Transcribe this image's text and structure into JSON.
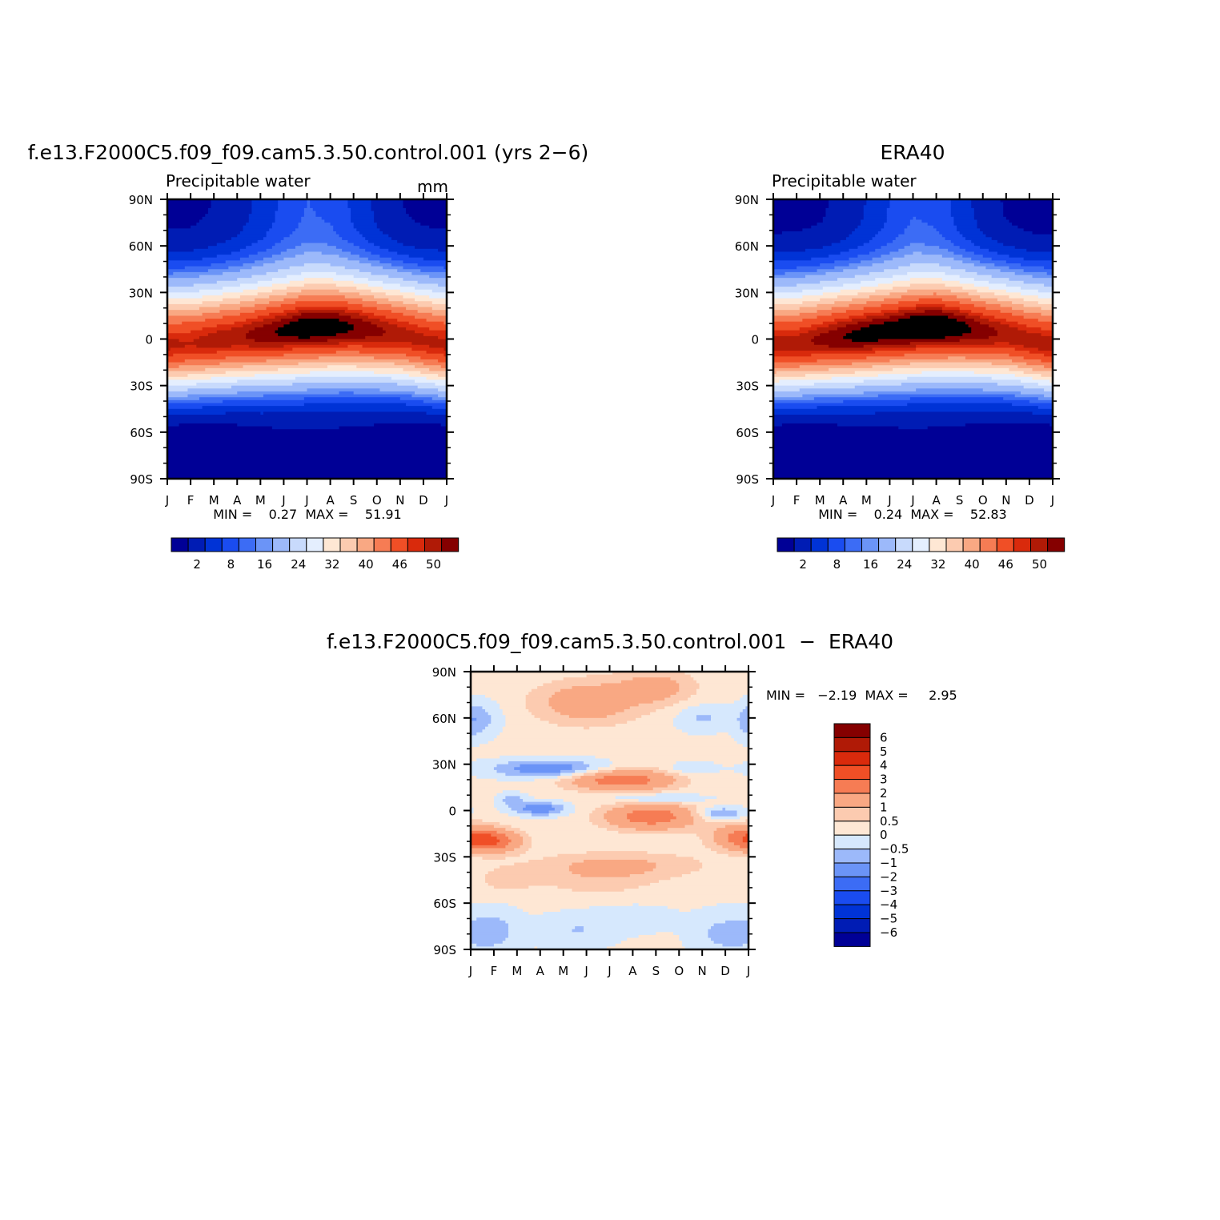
{
  "palette": {
    "seq16": [
      "#000096",
      "#001cb4",
      "#0033d6",
      "#1a4cf0",
      "#3c6cf5",
      "#6b94f7",
      "#9cb9fa",
      "#c8dafc",
      "#e4eefe",
      "#fee7d4",
      "#fccbb0",
      "#f9a883",
      "#f67c54",
      "#f04f26",
      "#d92a0c",
      "#b01a06",
      "#850000"
    ],
    "diff": [
      "#000096",
      "#001cb4",
      "#0033d6",
      "#1a4cf0",
      "#3c6cf5",
      "#6b94f7",
      "#9cb9fa",
      "#d6e8fd",
      "#fee7d4",
      "#fccbb0",
      "#f9a883",
      "#f67c54",
      "#f04f26",
      "#d92a0c",
      "#b01a06",
      "#850000"
    ]
  },
  "chart_data": [
    {
      "type": "heatmap",
      "name": "model",
      "title": "f.e13.F2000C5.f09_f09.cam5.3.50.control.001 (yrs 2−6)",
      "subtitle": "Precipitable water",
      "units": "mm",
      "x_ticks": [
        "J",
        "F",
        "M",
        "A",
        "M",
        "J",
        "J",
        "A",
        "S",
        "O",
        "N",
        "D",
        "J"
      ],
      "y_ticks": [
        "90N",
        "60N",
        "30N",
        "0",
        "30S",
        "60S",
        "90S"
      ],
      "stats": "MIN =    0.27  MAX =    51.91",
      "min": 0.27,
      "max": 51.91,
      "colorbar_labels": [
        "2",
        "8",
        "16",
        "24",
        "32",
        "40",
        "46",
        "50"
      ],
      "levels": [
        2,
        4,
        6,
        8,
        10,
        12,
        16,
        20,
        24,
        28,
        32,
        36,
        40,
        44,
        46,
        48,
        50
      ],
      "equator_peak": [
        46.5,
        46,
        47,
        47.5,
        49,
        50.5,
        51.9,
        51.5,
        50,
        48.5,
        47,
        46.5,
        46.5
      ],
      "peak_lat": [
        -4,
        -3,
        -1,
        1,
        3,
        5,
        7,
        8,
        7,
        5,
        3,
        -1,
        -4
      ],
      "polar_north": [
        1.5,
        1.5,
        2,
        3,
        4.5,
        6.5,
        8,
        7.5,
        5.5,
        3.5,
        2,
        1.5,
        1.5
      ],
      "polar_south": [
        0.3,
        0.3,
        0.4,
        0.6,
        0.9,
        1.1,
        1.2,
        1.2,
        1.0,
        0.8,
        0.5,
        0.3,
        0.3
      ]
    },
    {
      "type": "heatmap",
      "name": "obs",
      "title": "ERA40",
      "subtitle": "Precipitable water",
      "units": "",
      "x_ticks": [
        "J",
        "F",
        "M",
        "A",
        "M",
        "J",
        "J",
        "A",
        "S",
        "O",
        "N",
        "D",
        "J"
      ],
      "y_ticks": [
        "90N",
        "60N",
        "30N",
        "0",
        "30S",
        "60S",
        "90S"
      ],
      "stats": "MIN =    0.24  MAX =    52.83",
      "min": 0.24,
      "max": 52.83,
      "colorbar_labels": [
        "2",
        "8",
        "16",
        "24",
        "32",
        "40",
        "46",
        "50"
      ],
      "levels": [
        2,
        4,
        6,
        8,
        10,
        12,
        16,
        20,
        24,
        28,
        32,
        36,
        40,
        44,
        46,
        48,
        50
      ],
      "equator_peak": [
        47,
        47,
        48.5,
        50,
        51,
        51.5,
        52.5,
        52.8,
        51,
        49,
        47.5,
        47,
        47
      ],
      "peak_lat": [
        -4,
        -3,
        -1,
        1,
        3,
        5,
        7,
        8,
        7,
        5,
        3,
        -1,
        -4
      ],
      "polar_north": [
        1.2,
        1.3,
        1.6,
        2.5,
        4,
        6,
        7.8,
        7.3,
        5,
        3,
        1.7,
        1.2,
        1.2
      ],
      "polar_south": [
        0.25,
        0.25,
        0.35,
        0.55,
        0.8,
        1.0,
        1.1,
        1.1,
        0.9,
        0.7,
        0.45,
        0.25,
        0.25
      ]
    },
    {
      "type": "heatmap",
      "name": "difference",
      "title": "f.e13.F2000C5.f09_f09.cam5.3.50.control.001  −  ERA40",
      "x_ticks": [
        "J",
        "F",
        "M",
        "A",
        "M",
        "J",
        "J",
        "A",
        "S",
        "O",
        "N",
        "D",
        "J"
      ],
      "y_ticks": [
        "90N",
        "60N",
        "30N",
        "0",
        "30S",
        "60S",
        "90S"
      ],
      "stats": "MIN =   −2.19  MAX =     2.95",
      "min": -2.19,
      "max": 2.95,
      "levels": [
        -6,
        -5,
        -4,
        -3,
        -2,
        -1,
        -0.5,
        0,
        0.5,
        1,
        2,
        3,
        4,
        5,
        6
      ],
      "colorbar_labels": [
        "6",
        "5",
        "4",
        "3",
        "2",
        "1",
        "0.5",
        "0",
        "−0.5",
        "−1",
        "−2",
        "−3",
        "−4",
        "−5",
        "−6"
      ],
      "features": [
        {
          "month": 6.5,
          "lat": 20,
          "amp": 2.6,
          "sm": 1.6,
          "sl": 5
        },
        {
          "month": 7.8,
          "lat": -4,
          "amp": 2.5,
          "sm": 1.4,
          "sl": 6
        },
        {
          "month": 0.9,
          "lat": -20,
          "amp": 2.4,
          "sm": 0.9,
          "sl": 5
        },
        {
          "month": 11.8,
          "lat": -17,
          "amp": 2.0,
          "sm": 1.0,
          "sl": 6
        },
        {
          "month": 5.0,
          "lat": 70,
          "amp": 1.5,
          "sm": 1.6,
          "sl": 10
        },
        {
          "month": 8.0,
          "lat": 80,
          "amp": 1.2,
          "sm": 1.2,
          "sl": 8
        },
        {
          "month": 6.5,
          "lat": -35,
          "amp": 0.9,
          "sm": 2.6,
          "sl": 6
        },
        {
          "month": 5.5,
          "lat": -45,
          "amp": 0.6,
          "sm": 2.0,
          "sl": 8
        },
        {
          "month": 1.5,
          "lat": -45,
          "amp": 0.6,
          "sm": 0.8,
          "sl": 6
        },
        {
          "month": 3.5,
          "lat": 27,
          "amp": -1.7,
          "sm": 1.8,
          "sl": 4
        },
        {
          "month": 3.0,
          "lat": 1,
          "amp": -1.6,
          "sm": 0.8,
          "sl": 3
        },
        {
          "month": 1.8,
          "lat": 7,
          "amp": -0.9,
          "sm": 0.4,
          "sl": 3
        },
        {
          "month": 10.8,
          "lat": -2,
          "amp": -1.3,
          "sm": 0.7,
          "sl": 3
        },
        {
          "month": 8.0,
          "lat": 8,
          "amp": -1.0,
          "sm": 1.4,
          "sl": 2
        },
        {
          "month": 9.5,
          "lat": 27,
          "amp": -0.7,
          "sm": 0.7,
          "sl": 3
        },
        {
          "month": 0.5,
          "lat": 60,
          "amp": -0.7,
          "sm": 0.6,
          "sl": 8
        },
        {
          "month": 10.0,
          "lat": 60,
          "amp": -0.7,
          "sm": 0.8,
          "sl": 6
        },
        {
          "month": 12.0,
          "lat": 57,
          "amp": -0.6,
          "sm": 0.4,
          "sl": 8
        },
        {
          "month": 11.0,
          "lat": -80,
          "amp": -0.8,
          "sm": 1.0,
          "sl": 10
        },
        {
          "month": 1.0,
          "lat": -78,
          "amp": -0.8,
          "sm": 0.8,
          "sl": 10
        },
        {
          "month": 4.5,
          "lat": -78,
          "amp": -0.6,
          "sm": 1.2,
          "sl": 8
        },
        {
          "month": 7.0,
          "lat": -70,
          "amp": -0.55,
          "sm": 1.2,
          "sl": 6
        }
      ]
    }
  ]
}
